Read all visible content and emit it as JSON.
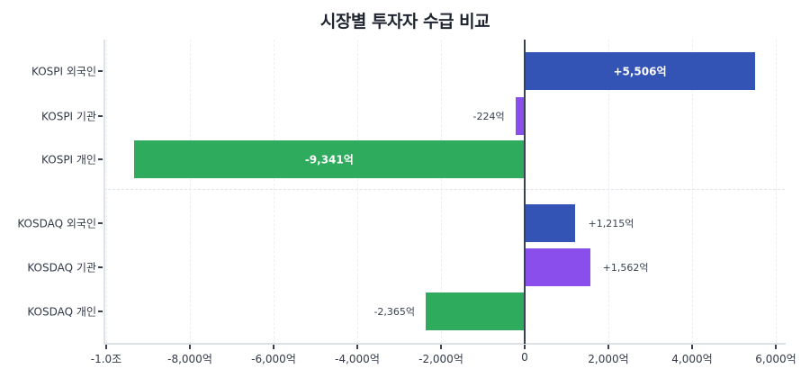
{
  "chart_data": {
    "type": "bar",
    "orientation": "horizontal",
    "title": "시장별 투자자 수급 비교",
    "xlabel": "",
    "ylabel": "",
    "unit": "억",
    "xlim": [
      -10000,
      6200
    ],
    "grid": true,
    "categories": [
      "KOSPI 외국인",
      "KOSPI 기관",
      "KOSPI 개인",
      "KOSDAQ 외국인",
      "KOSDAQ 기관",
      "KOSDAQ 개인"
    ],
    "values": [
      5506,
      -224,
      -9341,
      1215,
      1562,
      -2365
    ],
    "value_labels": [
      "+5,506억",
      "-224억",
      "-9,341억",
      "+1,215억",
      "+1,562억",
      "-2,365억"
    ],
    "colors": [
      "#3353b5",
      "#8a4eed",
      "#2eab5c",
      "#3353b5",
      "#8a4eed",
      "#2eab5c"
    ],
    "groups": [
      {
        "name": "KOSPI",
        "rows": [
          0,
          1,
          2
        ]
      },
      {
        "name": "KOSDAQ",
        "rows": [
          3,
          4,
          5
        ]
      }
    ],
    "x_ticks": [
      {
        "value": -10000,
        "label": "-1.0조"
      },
      {
        "value": -8000,
        "label": "-8,000억"
      },
      {
        "value": -6000,
        "label": "-6,000억"
      },
      {
        "value": -4000,
        "label": "-4,000억"
      },
      {
        "value": -2000,
        "label": "-2,000억"
      },
      {
        "value": 0,
        "label": "0"
      },
      {
        "value": 2000,
        "label": "2,000억"
      },
      {
        "value": 4000,
        "label": "4,000억"
      },
      {
        "value": 6000,
        "label": "6,000억"
      }
    ]
  },
  "colors": {
    "foreign": "#3353b5",
    "institution": "#8a4eed",
    "individual": "#2eab5c",
    "axis": "#3a4150",
    "grid": "#eceef2"
  }
}
